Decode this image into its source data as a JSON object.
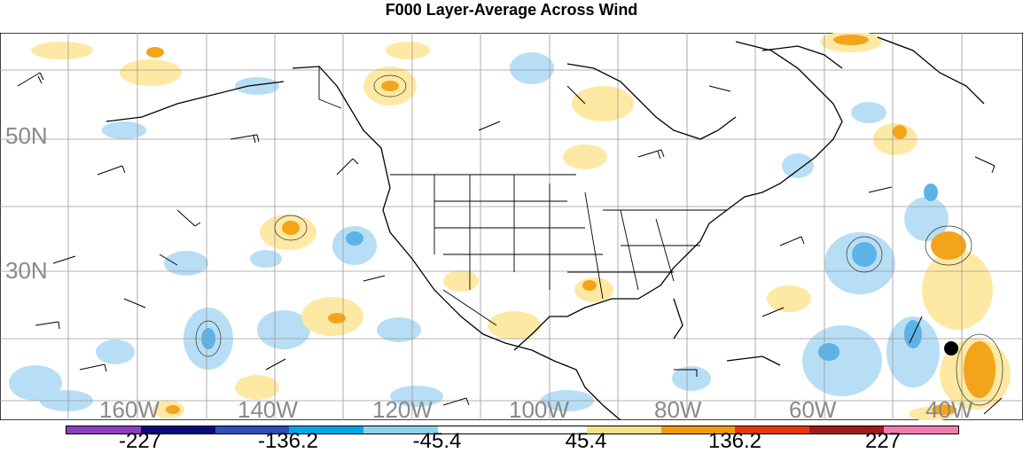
{
  "title": "F000 Layer-Average Across Wind",
  "lat_labels": [
    "50N",
    "30N"
  ],
  "lon_labels": [
    "160W",
    "140W",
    "120W",
    "100W",
    "80W",
    "60W",
    "40W"
  ],
  "colorbar": {
    "labels": [
      "-227",
      "-136.2",
      "-45.4",
      "45.4",
      "136.2",
      "227"
    ],
    "colors": [
      "#8b3fbf",
      "#0a0a7a",
      "#2d4fb8",
      "#00a6e8",
      "#8fd0ef",
      "#ffffff",
      "#ffffff",
      "#f7e08a",
      "#f39a10",
      "#e8380f",
      "#a01c1c",
      "#f07cb0"
    ]
  },
  "field_colors": {
    "light_blue": "#b7def5",
    "blue": "#5bb3e8",
    "light_yellow": "#fde9a3",
    "orange": "#f4a41a"
  }
}
